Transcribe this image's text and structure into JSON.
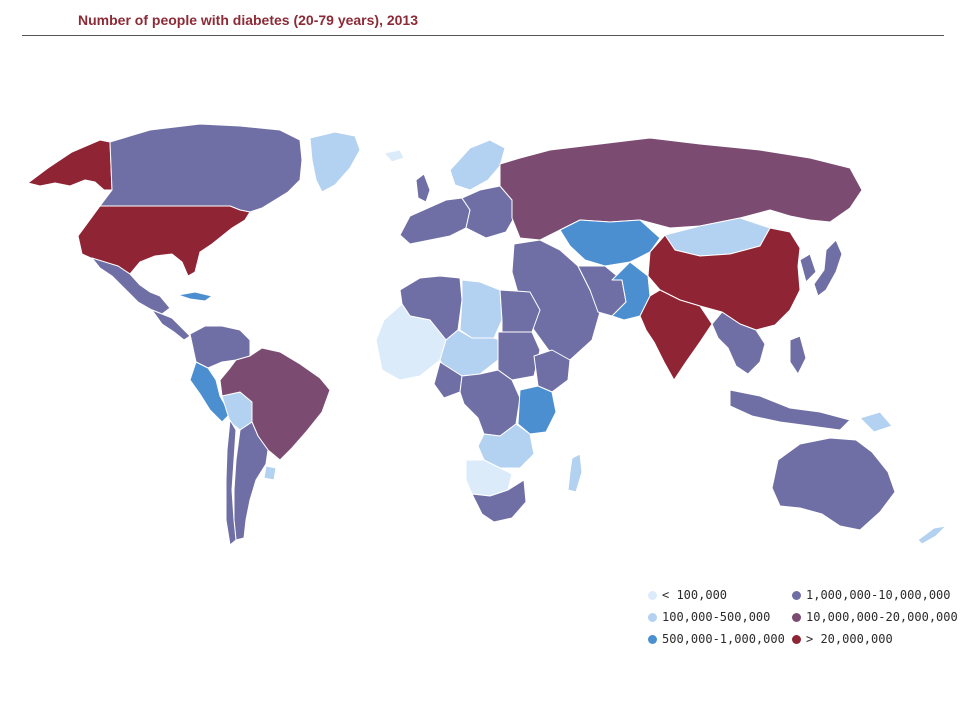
{
  "title": "Number of people with diabetes (20-79 years), 2013",
  "colors": {
    "bin1": "#dcebfa",
    "bin2": "#b3d1f0",
    "bin3": "#4b8fd1",
    "bin4": "#6f6fa6",
    "bin5": "#7b4b72",
    "bin6": "#8f2434",
    "border": "#ffffff"
  },
  "legend": {
    "items": [
      {
        "label": "< 100,000",
        "bin": "bin1"
      },
      {
        "label": "100,000-500,000",
        "bin": "bin2"
      },
      {
        "label": "500,000-1,000,000",
        "bin": "bin3"
      },
      {
        "label": "1,000,000-10,000,000",
        "bin": "bin4"
      },
      {
        "label": "10,000,000-20,000,000",
        "bin": "bin5"
      },
      {
        "label": "> 20,000,000",
        "bin": "bin6"
      }
    ]
  },
  "regions": {
    "alaska": "bin6",
    "canada": "bin4",
    "greenland": "bin2",
    "usa": "bin6",
    "mexico": "bin4",
    "central_america": "bin4",
    "cuba": "bin3",
    "colombia_venezuela": "bin4",
    "peru": "bin3",
    "bolivia": "bin2",
    "brazil": "bin5",
    "argentina": "bin4",
    "chile": "bin4",
    "uruguay": "bin2",
    "iceland": "bin1",
    "uk": "bin4",
    "scandinavia": "bin2",
    "western_europe": "bin4",
    "eastern_europe": "bin4",
    "russia": "bin5",
    "kazakhstan": "bin3",
    "mongolia": "bin2",
    "china": "bin6",
    "japan": "bin4",
    "korea": "bin4",
    "middle_east": "bin4",
    "iran": "bin4",
    "pakistan": "bin3",
    "india": "bin6",
    "indochina": "bin4",
    "indonesia": "bin4",
    "philippines": "bin4",
    "png": "bin2",
    "australia": "bin4",
    "new_zealand": "bin2",
    "north_africa_west": "bin4",
    "libya": "bin2",
    "egypt": "bin4",
    "west_africa": "bin1",
    "sahel": "bin2",
    "nigeria": "bin4",
    "ethiopia": "bin4",
    "sudan": "bin4",
    "central_africa": "bin4",
    "east_africa": "bin3",
    "southern_africa_mid": "bin2",
    "namibia_botswana": "bin1",
    "south_africa": "bin4",
    "madagascar": "bin2"
  }
}
